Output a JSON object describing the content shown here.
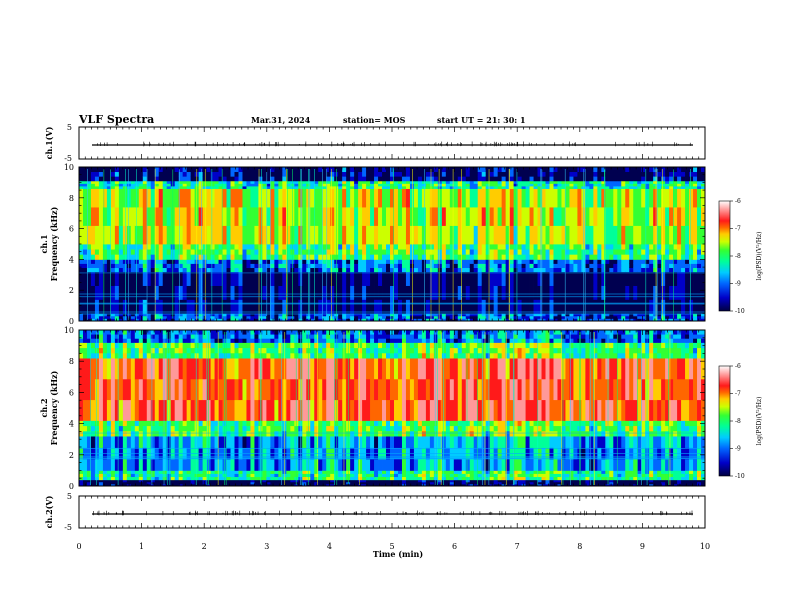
{
  "header": {
    "title": "VLF Spectra",
    "date": "Mar.31, 2024",
    "station": "station= MOS",
    "start_ut": "start  UT  =   21: 30: 1"
  },
  "chart_data": [
    {
      "type": "line",
      "ylabel": "ch.1(V)",
      "ylim": [
        -5,
        5
      ],
      "y_ticks": [
        "5",
        "-5"
      ],
      "xlim": [
        0,
        10
      ],
      "trace_level": 0
    },
    {
      "type": "heatmap",
      "ylabel": "ch.1\nFrequency (kHz)",
      "ylabel_line1": "ch.1",
      "ylabel_line2": "Frequency (kHz)",
      "ylim": [
        0,
        10
      ],
      "y_ticks": [
        "0",
        "2",
        "4",
        "6",
        "8",
        "10"
      ],
      "xlim": [
        0,
        10
      ],
      "colorbar": {
        "label": "log(PSD)(V²/Hz)",
        "ticks": [
          "-6",
          "-7",
          "-8",
          "-9",
          "-10"
        ],
        "range": [
          -10,
          -6
        ]
      },
      "bands": [
        {
          "from_khz": 0,
          "to_khz": 0.5,
          "level": -9.2
        },
        {
          "from_khz": 0.5,
          "to_khz": 3.2,
          "level": -9.9
        },
        {
          "from_khz": 3.2,
          "to_khz": 4.0,
          "level": -9.1
        },
        {
          "from_khz": 4.0,
          "to_khz": 5.0,
          "level": -8.1
        },
        {
          "from_khz": 5.0,
          "to_khz": 8.6,
          "level": -7.6
        },
        {
          "from_khz": 8.6,
          "to_khz": 9.1,
          "level": -8.4
        },
        {
          "from_khz": 9.1,
          "to_khz": 10,
          "level": -9.8
        }
      ]
    },
    {
      "type": "heatmap",
      "ylabel": "ch.2\nFrequency (kHz)",
      "ylabel_line1": "ch.2",
      "ylabel_line2": "Frequency (kHz)",
      "ylim": [
        0,
        10
      ],
      "y_ticks": [
        "0",
        "2",
        "4",
        "6",
        "8",
        "10"
      ],
      "xlim": [
        0,
        10
      ],
      "colorbar": {
        "label": "log(PSD)(V²/Hz)",
        "ticks": [
          "-6",
          "-7",
          "-8",
          "-9",
          "-10"
        ],
        "range": [
          -10,
          -6
        ]
      },
      "bands": [
        {
          "from_khz": 0,
          "to_khz": 0.4,
          "level": -9.9
        },
        {
          "from_khz": 0.4,
          "to_khz": 1.0,
          "level": -8.2
        },
        {
          "from_khz": 1.0,
          "to_khz": 3.2,
          "level": -8.8
        },
        {
          "from_khz": 3.2,
          "to_khz": 4.2,
          "level": -8.0
        },
        {
          "from_khz": 4.2,
          "to_khz": 8.2,
          "level": -6.6
        },
        {
          "from_khz": 8.2,
          "to_khz": 9.2,
          "level": -8.0
        },
        {
          "from_khz": 9.2,
          "to_khz": 10,
          "level": -9.0
        }
      ]
    },
    {
      "type": "line",
      "ylabel": "ch.2(V)",
      "ylim": [
        -5,
        5
      ],
      "y_ticks": [
        "5",
        "-5"
      ],
      "xlim": [
        0,
        10
      ],
      "trace_level": 0
    }
  ],
  "x_axis": {
    "label": "Time (min)",
    "ticks": [
      "0",
      "1",
      "2",
      "3",
      "4",
      "5",
      "6",
      "7",
      "8",
      "9",
      "10"
    ]
  },
  "colors": {
    "scale": [
      "#000050",
      "#0000c8",
      "#0066ff",
      "#00ccff",
      "#00ff99",
      "#33ff33",
      "#ccff00",
      "#ffcc00",
      "#ff6600",
      "#ff1a1a",
      "#ff9999",
      "#ffffff"
    ]
  }
}
